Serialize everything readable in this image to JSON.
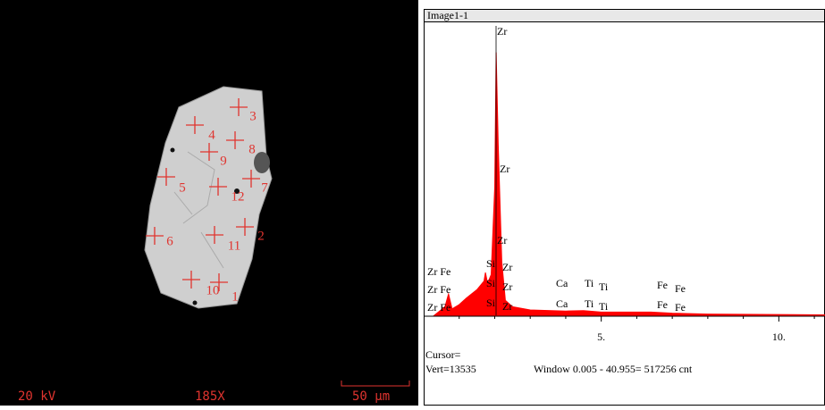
{
  "sem": {
    "voltage": "20 kV",
    "magnification": "185X",
    "scale_bar": "50 µm",
    "points": [
      "1",
      "2",
      "3",
      "4",
      "5",
      "6",
      "7",
      "8",
      "9",
      "10",
      "11",
      "12"
    ]
  },
  "spectrum": {
    "type": "area",
    "title": "Image1-1",
    "color": "#ff0000",
    "x": [
      0.3,
      0.6,
      0.7,
      0.8,
      1.0,
      1.2,
      1.5,
      1.7,
      1.74,
      1.8,
      1.9,
      2.0,
      2.04,
      2.1,
      2.2,
      2.3,
      2.5,
      3.0,
      4.0,
      4.5,
      5.0,
      6.4,
      7.0,
      8.0,
      11.3
    ],
    "values": [
      0,
      400,
      1000,
      300,
      500,
      800,
      1200,
      1600,
      2000,
      1500,
      1900,
      6000,
      12300,
      8000,
      2500,
      700,
      400,
      250,
      200,
      220,
      150,
      150,
      100,
      60,
      20
    ],
    "xlim": [
      0,
      11.3
    ],
    "ylim": [
      0,
      13535
    ],
    "xticks": [
      {
        "value": 5,
        "label": "5."
      },
      {
        "value": 10,
        "label": "10."
      }
    ],
    "peak_labels": [
      "Zr",
      "Zr",
      "Zr",
      "Zr Fe",
      "Zr Fe",
      "Zr Fe",
      "Si",
      "Si",
      "Si",
      "Zr",
      "Zr",
      "Zr",
      "Ca",
      "Ca",
      "Ti",
      "Ti",
      "Ti",
      "Ti",
      "Fe",
      "Fe",
      "Fe",
      "Fe"
    ],
    "cursor": "Cursor=",
    "vert": "Vert=13535",
    "window": "Window 0.005 - 40.955=  517256 cnt"
  }
}
